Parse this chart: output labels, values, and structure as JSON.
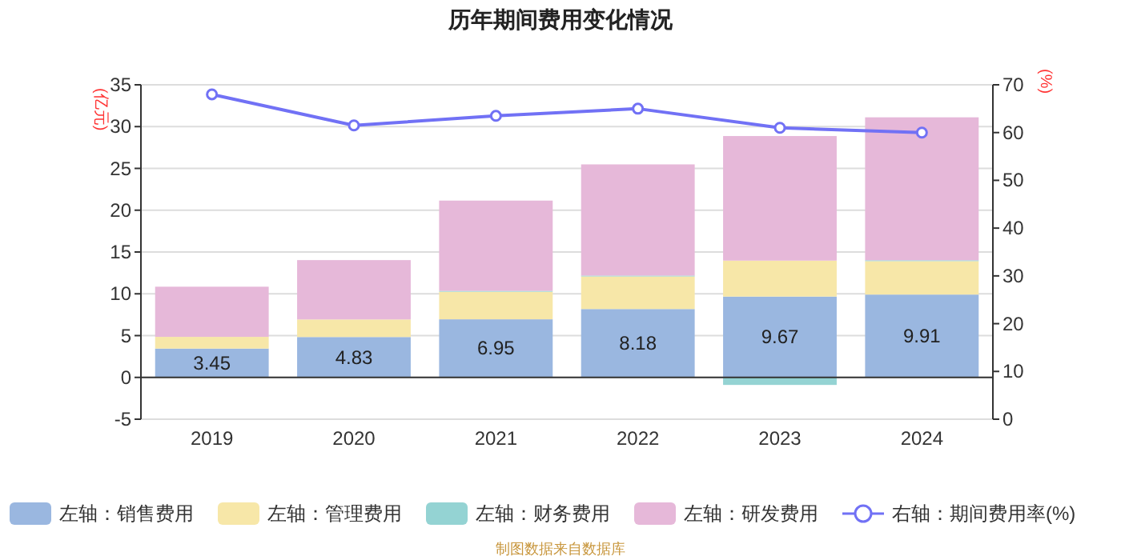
{
  "chart_data": {
    "type": "bar",
    "title": "历年期间费用变化情况",
    "ylabel": "(亿元)",
    "y2label": "(%)",
    "categories": [
      "2019",
      "2020",
      "2021",
      "2022",
      "2023",
      "2024"
    ],
    "stacked": true,
    "series": [
      {
        "name": "左轴：销售费用",
        "color": "#9ab7e0",
        "values": [
          3.45,
          4.83,
          6.95,
          8.18,
          9.67,
          9.91
        ],
        "value_labels": [
          "3.45",
          "4.83",
          "6.95",
          "8.18",
          "9.67",
          "9.91"
        ]
      },
      {
        "name": "左轴：管理费用",
        "color": "#f7e7a8",
        "values": [
          1.4,
          2.1,
          3.3,
          3.9,
          4.3,
          4.0
        ]
      },
      {
        "name": "左轴：财务费用",
        "color": "#94d3d3",
        "values": [
          0.0,
          0.0,
          0.1,
          0.1,
          -0.9,
          0.1
        ]
      },
      {
        "name": "左轴：研发费用",
        "color": "#e6b8d9",
        "values": [
          6.0,
          7.1,
          10.8,
          13.3,
          14.9,
          17.1
        ]
      },
      {
        "name": "右轴：期间费用率(%)",
        "type": "line",
        "axis": "y2",
        "color": "#7171f5",
        "marker": "circle",
        "values": [
          68,
          61.5,
          63.5,
          65,
          61,
          60
        ]
      }
    ],
    "ylim": [
      -5,
      35
    ],
    "yticks": [
      -5,
      0,
      5,
      10,
      15,
      20,
      25,
      30,
      35
    ],
    "y2lim": [
      0,
      70
    ],
    "y2ticks": [
      0,
      10,
      20,
      30,
      40,
      50,
      60,
      70
    ],
    "grid": "y",
    "legend": "bottom",
    "annotations": [
      "制图数据来自数据库"
    ]
  }
}
